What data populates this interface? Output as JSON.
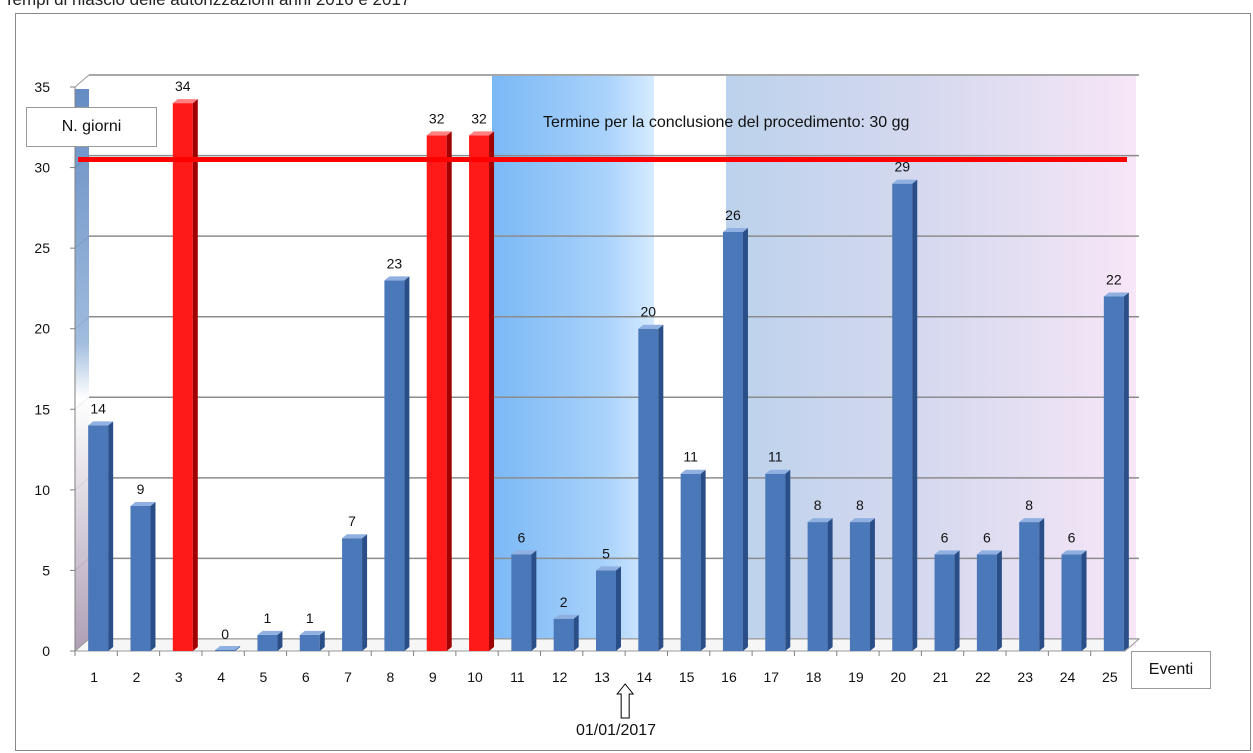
{
  "page_title": "Tempi di rilascio delle autorizzazioni anni 2016 e 2017",
  "chart_data": {
    "type": "bar",
    "categories": [
      "1",
      "2",
      "3",
      "4",
      "5",
      "6",
      "7",
      "8",
      "9",
      "10",
      "11",
      "12",
      "13",
      "14",
      "15",
      "16",
      "17",
      "18",
      "19",
      "20",
      "21",
      "22",
      "23",
      "24",
      "25"
    ],
    "values": [
      14,
      9,
      34,
      0,
      1,
      1,
      7,
      23,
      32,
      32,
      6,
      2,
      5,
      20,
      11,
      26,
      11,
      8,
      8,
      29,
      6,
      6,
      8,
      6,
      22
    ],
    "ylabel": "N. giorni",
    "xlabel": "Eventi",
    "ylim": [
      0,
      35
    ],
    "yticks": [
      0,
      5,
      10,
      15,
      20,
      25,
      30,
      35
    ],
    "grid": true,
    "threshold": {
      "value": 30.5,
      "label": "Termine per la conclusione del procedimento: 30 gg",
      "color": "#ff0000"
    },
    "colors": {
      "normal": "#4a78b8",
      "normal_dark": "#2a4f88",
      "exceed": "#ff1a1a",
      "exceed_dark": "#a00000"
    },
    "marker": {
      "label": "01/01/2017",
      "category": "14"
    }
  }
}
